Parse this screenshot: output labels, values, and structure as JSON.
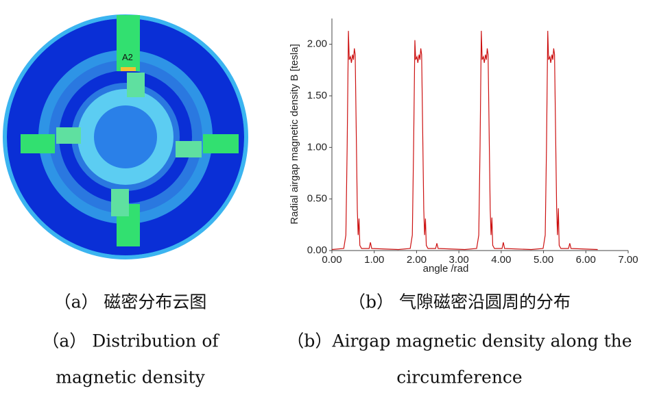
{
  "fem_image": {
    "label": "A2"
  },
  "captions": {
    "a_cn": "（a） 磁密分布云图",
    "a_en_1": "（a） Distribution of",
    "a_en_2": "magnetic density",
    "b_cn": "（b） 气隙磁密沿圆周的分布",
    "b_en_1": "（b）Airgap magnetic density along the",
    "b_en_2": "circumference"
  },
  "chart_data": {
    "type": "line",
    "xlabel": "angle /rad",
    "ylabel": "Radial airgap magnetic density B [tesla]",
    "xlim": [
      0,
      7
    ],
    "ylim": [
      0,
      2.25
    ],
    "xticks": [
      {
        "value": 0,
        "label": "0.00"
      },
      {
        "value": 1,
        "label": "1.00"
      },
      {
        "value": 2,
        "label": "2.00"
      },
      {
        "value": 3,
        "label": "3.00"
      },
      {
        "value": 4,
        "label": "4.00"
      },
      {
        "value": 5,
        "label": "5.00"
      },
      {
        "value": 6,
        "label": "6.00"
      },
      {
        "value": 7,
        "label": "7.00"
      }
    ],
    "yticks": [
      {
        "value": 0,
        "label": "0.00"
      },
      {
        "value": 0.5,
        "label": "0.50"
      },
      {
        "value": 1,
        "label": "1.00"
      },
      {
        "value": 1.5,
        "label": "1.50"
      },
      {
        "value": 2,
        "label": "2.00"
      }
    ],
    "x": [
      0,
      0.28,
      0.33,
      0.36,
      0.39,
      0.41,
      0.44,
      0.46,
      0.49,
      0.51,
      0.53,
      0.55,
      0.57,
      0.6,
      0.62,
      0.64,
      0.66,
      0.7,
      0.88,
      0.91,
      0.94,
      1.57,
      1.85,
      1.9,
      1.93,
      1.96,
      1.98,
      2.01,
      2.03,
      2.06,
      2.08,
      2.1,
      2.12,
      2.14,
      2.17,
      2.19,
      2.21,
      2.23,
      2.27,
      2.45,
      2.48,
      2.51,
      3.14,
      3.42,
      3.47,
      3.5,
      3.53,
      3.55,
      3.58,
      3.6,
      3.63,
      3.65,
      3.67,
      3.69,
      3.71,
      3.74,
      3.76,
      3.78,
      3.8,
      3.84,
      4.02,
      4.05,
      4.08,
      4.71,
      4.99,
      5.04,
      5.07,
      5.1,
      5.12,
      5.15,
      5.17,
      5.2,
      5.22,
      5.24,
      5.26,
      5.28,
      5.31,
      5.33,
      5.35,
      5.37,
      5.41,
      5.59,
      5.62,
      5.65,
      6.28
    ],
    "series": [
      {
        "color": "#cc1111",
        "values": [
          0.01,
          0.02,
          0.15,
          1.0,
          2.13,
          1.85,
          1.88,
          1.82,
          1.9,
          1.85,
          1.96,
          1.9,
          1.3,
          0.4,
          0.15,
          0.31,
          0.05,
          0.02,
          0.02,
          0.08,
          0.02,
          0.01,
          0.02,
          0.15,
          1.0,
          2.04,
          1.85,
          1.88,
          1.82,
          1.9,
          1.85,
          1.96,
          1.9,
          1.3,
          0.4,
          0.15,
          0.31,
          0.05,
          0.02,
          0.02,
          0.07,
          0.02,
          0.01,
          0.02,
          0.15,
          1.0,
          2.13,
          1.85,
          1.88,
          1.82,
          1.9,
          1.85,
          1.96,
          1.9,
          1.3,
          0.4,
          0.15,
          0.32,
          0.05,
          0.02,
          0.02,
          0.08,
          0.02,
          0.01,
          0.02,
          0.15,
          1.0,
          2.13,
          1.85,
          1.88,
          1.82,
          1.9,
          1.85,
          1.96,
          1.9,
          1.3,
          0.4,
          0.15,
          0.41,
          0.05,
          0.02,
          0.02,
          0.07,
          0.02,
          0.01
        ]
      }
    ]
  }
}
